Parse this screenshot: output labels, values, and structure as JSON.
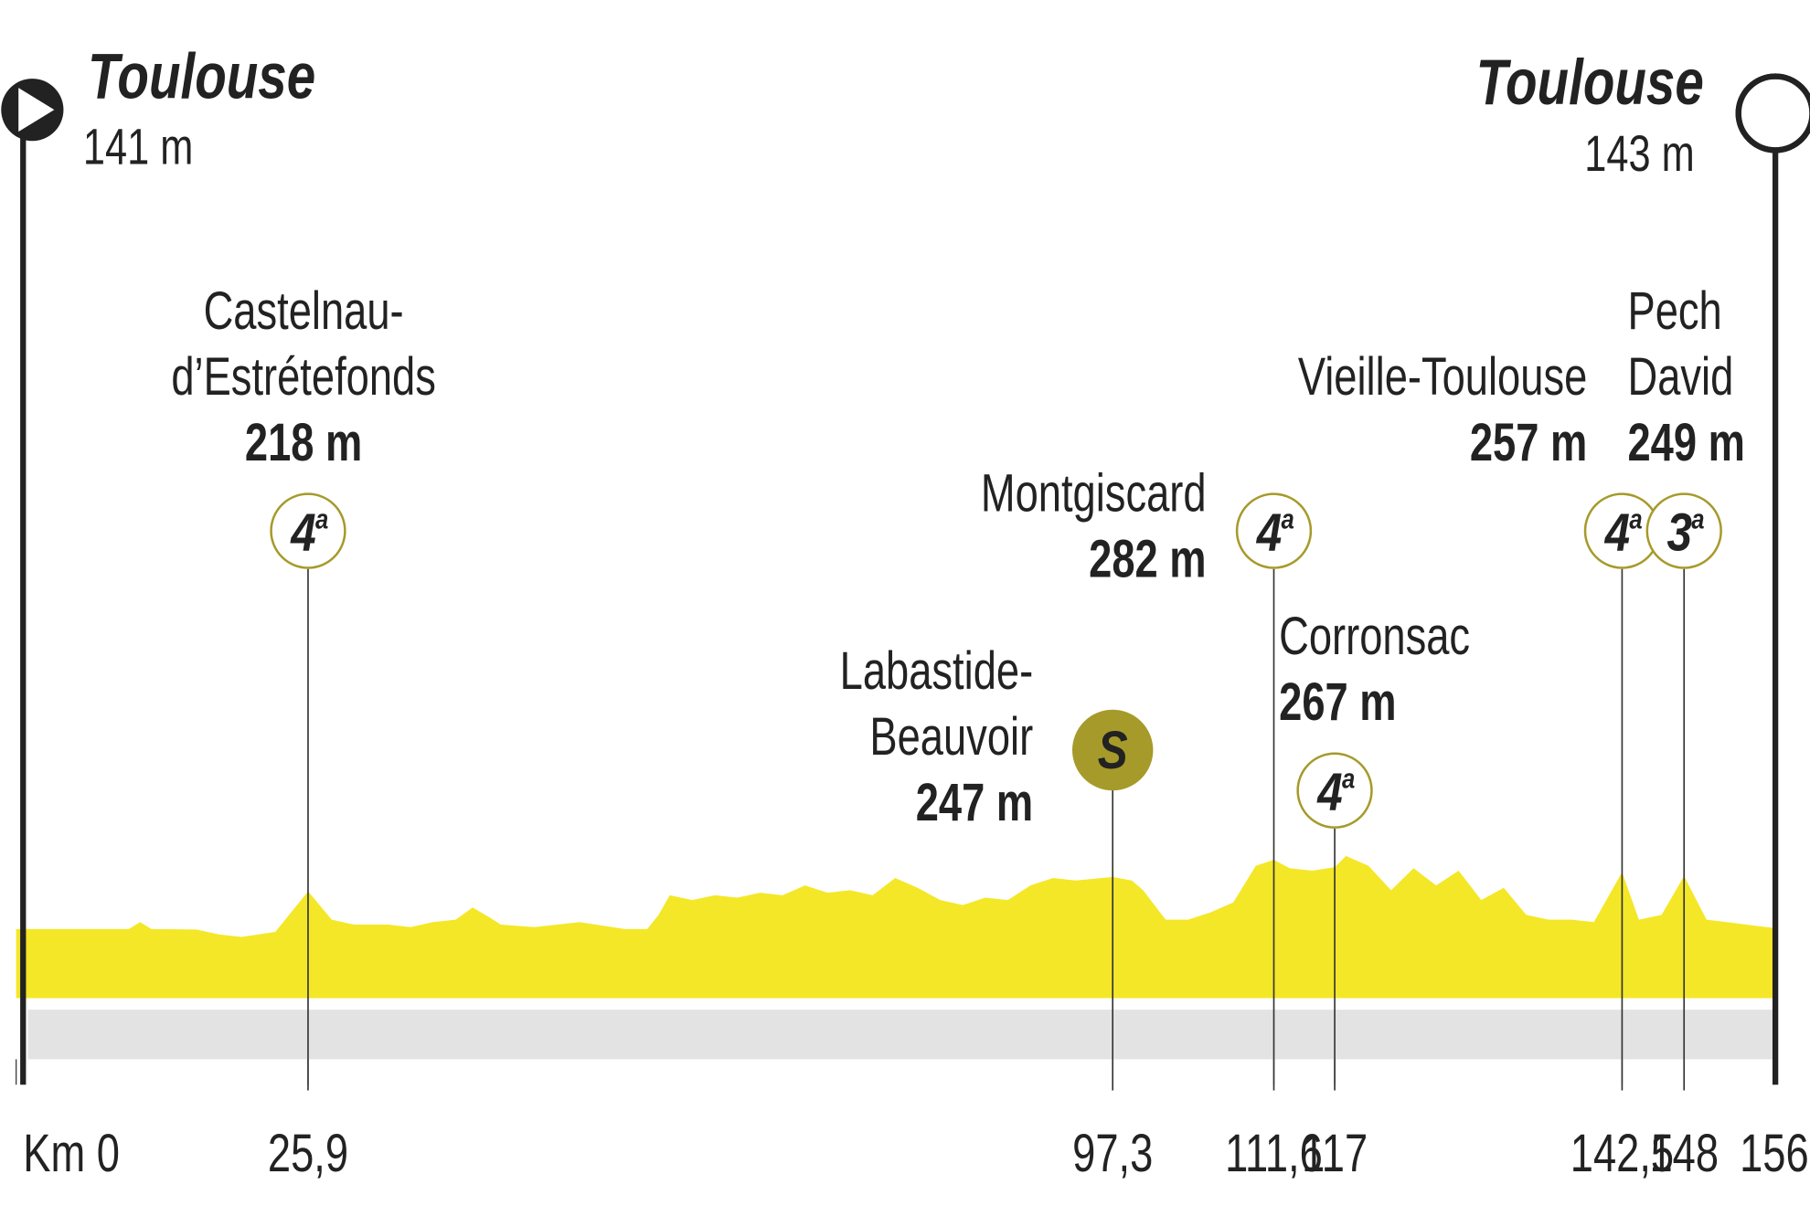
{
  "chart_data": {
    "type": "area",
    "color": "#f4e727",
    "xlim": [
      0,
      156
    ],
    "ylim": [
      0,
      300
    ],
    "xticks": [
      {
        "value": 0,
        "label": "Km 0"
      },
      {
        "value": 25.9,
        "label": "25,9"
      },
      {
        "value": 97.3,
        "label": "97,3"
      },
      {
        "value": 111.6,
        "label": "111,6"
      },
      117,
      {
        "value": 142.5,
        "label": "142,5"
      },
      148,
      156
    ],
    "x": [
      0,
      10,
      11,
      12,
      16,
      18,
      20,
      23,
      25.9,
      28,
      30,
      33,
      35,
      37,
      39,
      40.5,
      42,
      43,
      46,
      50,
      54,
      56,
      57,
      58,
      60,
      62,
      64,
      66,
      68,
      70,
      72,
      74,
      76,
      78,
      80,
      82,
      84,
      86,
      88,
      90,
      92,
      94,
      97.3,
      99,
      100,
      102,
      104,
      106,
      108,
      110,
      111.6,
      113,
      115,
      117,
      118,
      120,
      122,
      124,
      126,
      128,
      130,
      132,
      134,
      136,
      138,
      140,
      142.5,
      144,
      146,
      148,
      150,
      156
    ],
    "values": [
      141,
      141,
      155,
      141,
      140,
      130,
      125,
      135,
      218,
      160,
      150,
      150,
      145,
      155,
      160,
      185,
      165,
      150,
      145,
      155,
      141,
      141,
      170,
      210,
      200,
      210,
      205,
      215,
      210,
      230,
      215,
      220,
      210,
      245,
      225,
      200,
      190,
      205,
      200,
      230,
      245,
      240,
      247,
      240,
      220,
      160,
      160,
      175,
      195,
      270,
      282,
      265,
      260,
      267,
      290,
      270,
      220,
      265,
      230,
      260,
      200,
      225,
      170,
      160,
      160,
      155,
      257,
      160,
      170,
      249,
      160,
      143
    ],
    "start": {
      "name": "Toulouse",
      "altitude": 141,
      "altitude_label": "141 m"
    },
    "finish": {
      "name": "Toulouse",
      "altitude": 143,
      "altitude_label": "143 m"
    },
    "points": [
      {
        "name": [
          "Castelnau-",
          "d’Estrétefonds"
        ],
        "altitude": 218,
        "altitude_label": "218 m",
        "km": 25.9,
        "badge": "4",
        "badge_suffix": "a"
      },
      {
        "name": [
          "Labastide-",
          "Beauvoir"
        ],
        "altitude": 247,
        "altitude_label": "247 m",
        "km": 97.3,
        "badge": "S"
      },
      {
        "name": [
          "Montgiscard"
        ],
        "altitude": 282,
        "altitude_label": "282 m",
        "km": 111.6,
        "badge": "4",
        "badge_suffix": "a"
      },
      {
        "name": [
          "Corronsac"
        ],
        "altitude": 267,
        "altitude_label": "267 m",
        "km": 117,
        "badge": "4",
        "badge_suffix": "a"
      },
      {
        "name": [
          "Vieille-Toulouse"
        ],
        "altitude": 257,
        "altitude_label": "257 m",
        "km": 142.5,
        "badge": "4",
        "badge_suffix": "a"
      },
      {
        "name": [
          "Pech",
          "David"
        ],
        "altitude": 249,
        "altitude_label": "249 m",
        "km": 148,
        "badge": "3",
        "badge_suffix": "a"
      }
    ]
  }
}
